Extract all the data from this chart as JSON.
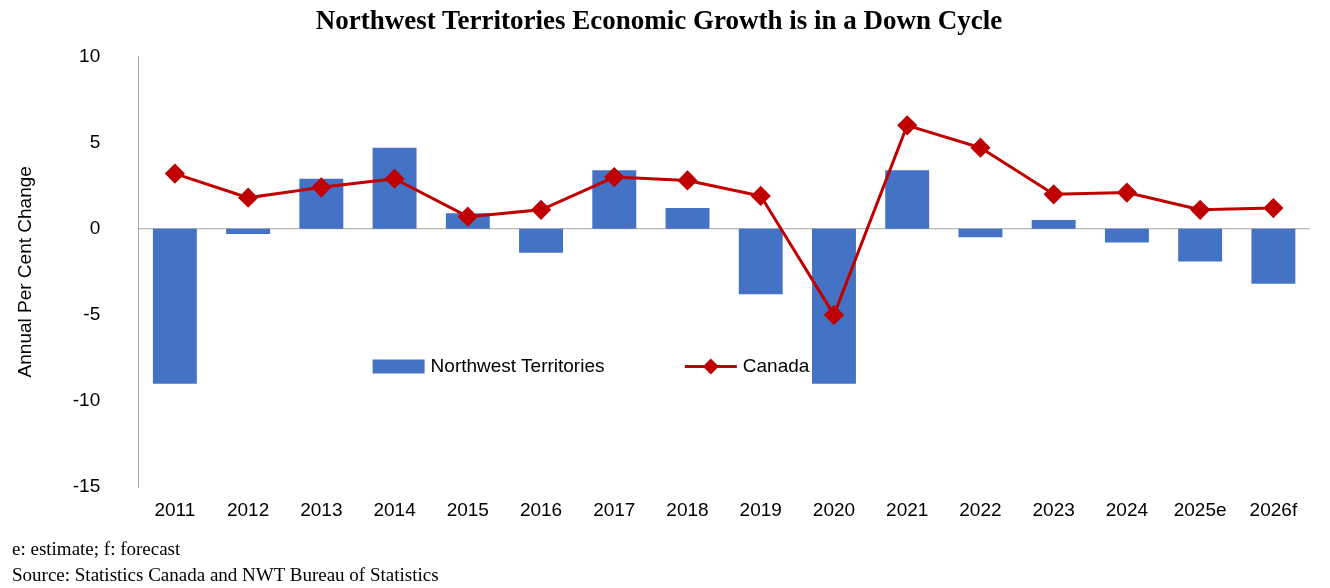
{
  "chart_data": {
    "type": "bar",
    "title": "Northwest Territories Economic Growth is in a Down Cycle",
    "ylabel": "Annual Per Cent Change",
    "categories": [
      "2011",
      "2012",
      "2013",
      "2014",
      "2015",
      "2016",
      "2017",
      "2018",
      "2019",
      "2020",
      "2021",
      "2022",
      "2023",
      "2024",
      "2025e",
      "2026f"
    ],
    "series": [
      {
        "name": "Northwest Territories",
        "color": "#4472c4",
        "values": [
          -9.0,
          -0.3,
          2.9,
          4.7,
          0.9,
          -1.4,
          3.4,
          1.2,
          -3.8,
          -9.0,
          3.4,
          -0.5,
          0.5,
          -0.8,
          -1.9,
          -3.2
        ]
      },
      {
        "name": "Canada",
        "type": "line",
        "color": "#c00000",
        "marker": "diamond",
        "values": [
          3.2,
          1.8,
          2.4,
          2.9,
          0.7,
          1.1,
          3.0,
          2.8,
          1.9,
          -5.0,
          6.0,
          4.7,
          2.0,
          2.1,
          1.1,
          1.2
        ]
      }
    ],
    "ref_lines": [
      {
        "axis": "y",
        "value": 0,
        "color": "#a6a6a6"
      }
    ],
    "ylim": [
      -15,
      10
    ],
    "yticks": [
      -15,
      -10,
      -5,
      0,
      5,
      10
    ],
    "grid": false,
    "legend": "bottom",
    "annotations": [
      "e: estimate; f: forecast",
      "Source: Statistics Canada and NWT Bureau of Statistics"
    ]
  }
}
